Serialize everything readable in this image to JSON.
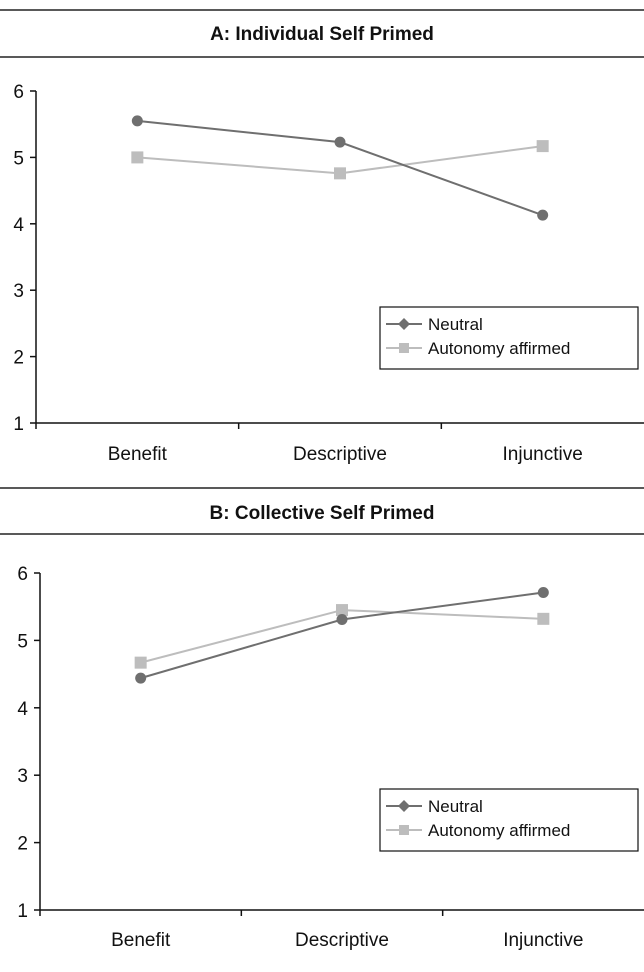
{
  "chart_data": [
    {
      "type": "line",
      "title": "A: Individual Self Primed",
      "categories": [
        "Benefit",
        "Descriptive",
        "Injunctive"
      ],
      "ylim": [
        1,
        6
      ],
      "yticks": [
        1,
        2,
        3,
        4,
        5,
        6
      ],
      "grid": false,
      "legend_position": "bottom-right",
      "series": [
        {
          "name": "Neutral",
          "values": [
            5.55,
            5.23,
            4.13
          ],
          "color": "#6f6f6f",
          "marker": "diamond"
        },
        {
          "name": "Autonomy affirmed",
          "values": [
            5.0,
            4.76,
            5.17
          ],
          "color": "#bdbdbd",
          "marker": "square"
        }
      ]
    },
    {
      "type": "line",
      "title": "B: Collective Self Primed",
      "categories": [
        "Benefit",
        "Descriptive",
        "Injunctive"
      ],
      "ylim": [
        1,
        6
      ],
      "yticks": [
        1,
        2,
        3,
        4,
        5,
        6
      ],
      "grid": false,
      "legend_position": "bottom-right",
      "series": [
        {
          "name": "Neutral",
          "values": [
            4.44,
            5.31,
            5.71
          ],
          "color": "#6f6f6f",
          "marker": "diamond"
        },
        {
          "name": "Autonomy affirmed",
          "values": [
            4.67,
            5.45,
            5.32
          ],
          "color": "#bdbdbd",
          "marker": "square"
        }
      ]
    }
  ]
}
